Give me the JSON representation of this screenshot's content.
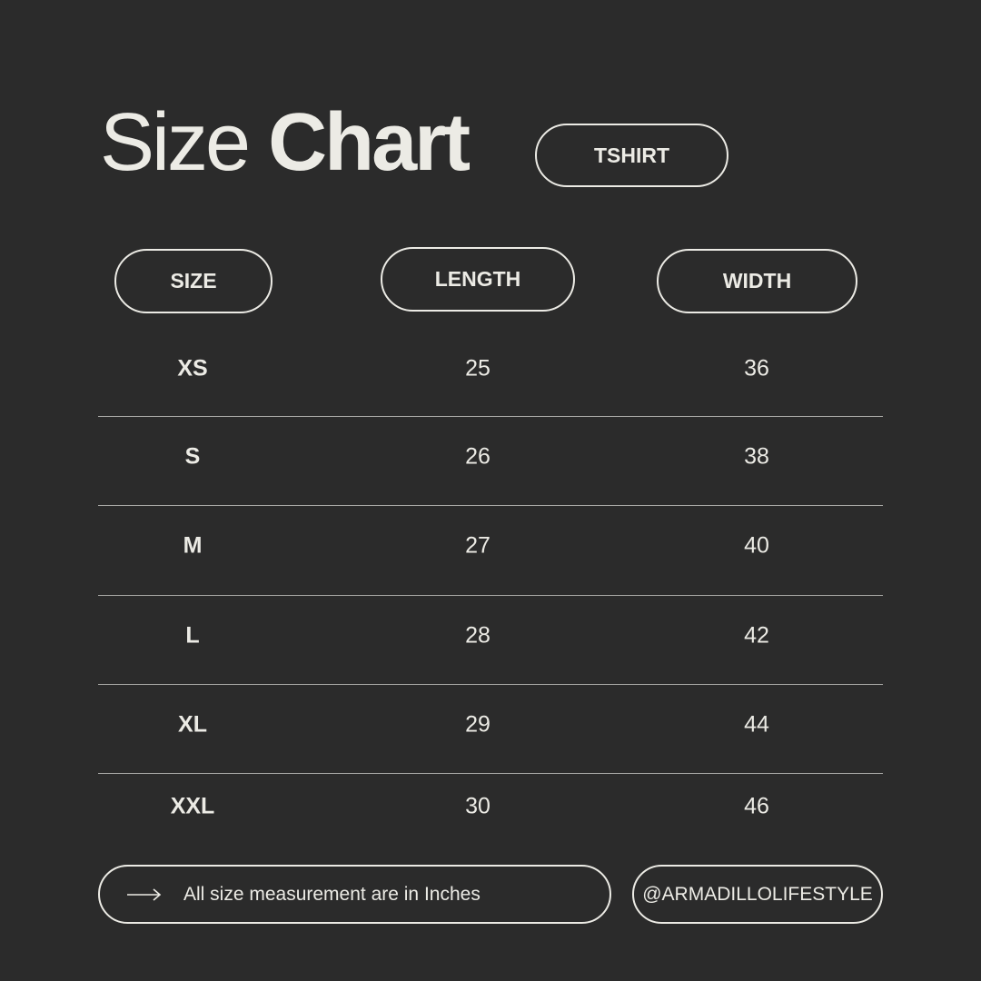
{
  "title": {
    "light": "Size",
    "bold": "Chart"
  },
  "category_badge": "TSHIRT",
  "table": {
    "headers": [
      "SIZE",
      "LENGTH",
      "WIDTH"
    ],
    "rows": [
      {
        "size": "XS",
        "length": "25",
        "width": "36"
      },
      {
        "size": "S",
        "length": "26",
        "width": "38"
      },
      {
        "size": "M",
        "length": "27",
        "width": "40"
      },
      {
        "size": "L",
        "length": "28",
        "width": "42"
      },
      {
        "size": "XL",
        "length": "29",
        "width": "44"
      },
      {
        "size": "XXL",
        "length": "30",
        "width": "46"
      }
    ]
  },
  "footer": {
    "arrow_icon": "arrow-right-icon",
    "note": "All size measurement are in Inches",
    "handle": "@ARMADILLOLIFESTYLE"
  },
  "colors": {
    "background": "#2b2b2b",
    "text": "#ecebe5"
  }
}
